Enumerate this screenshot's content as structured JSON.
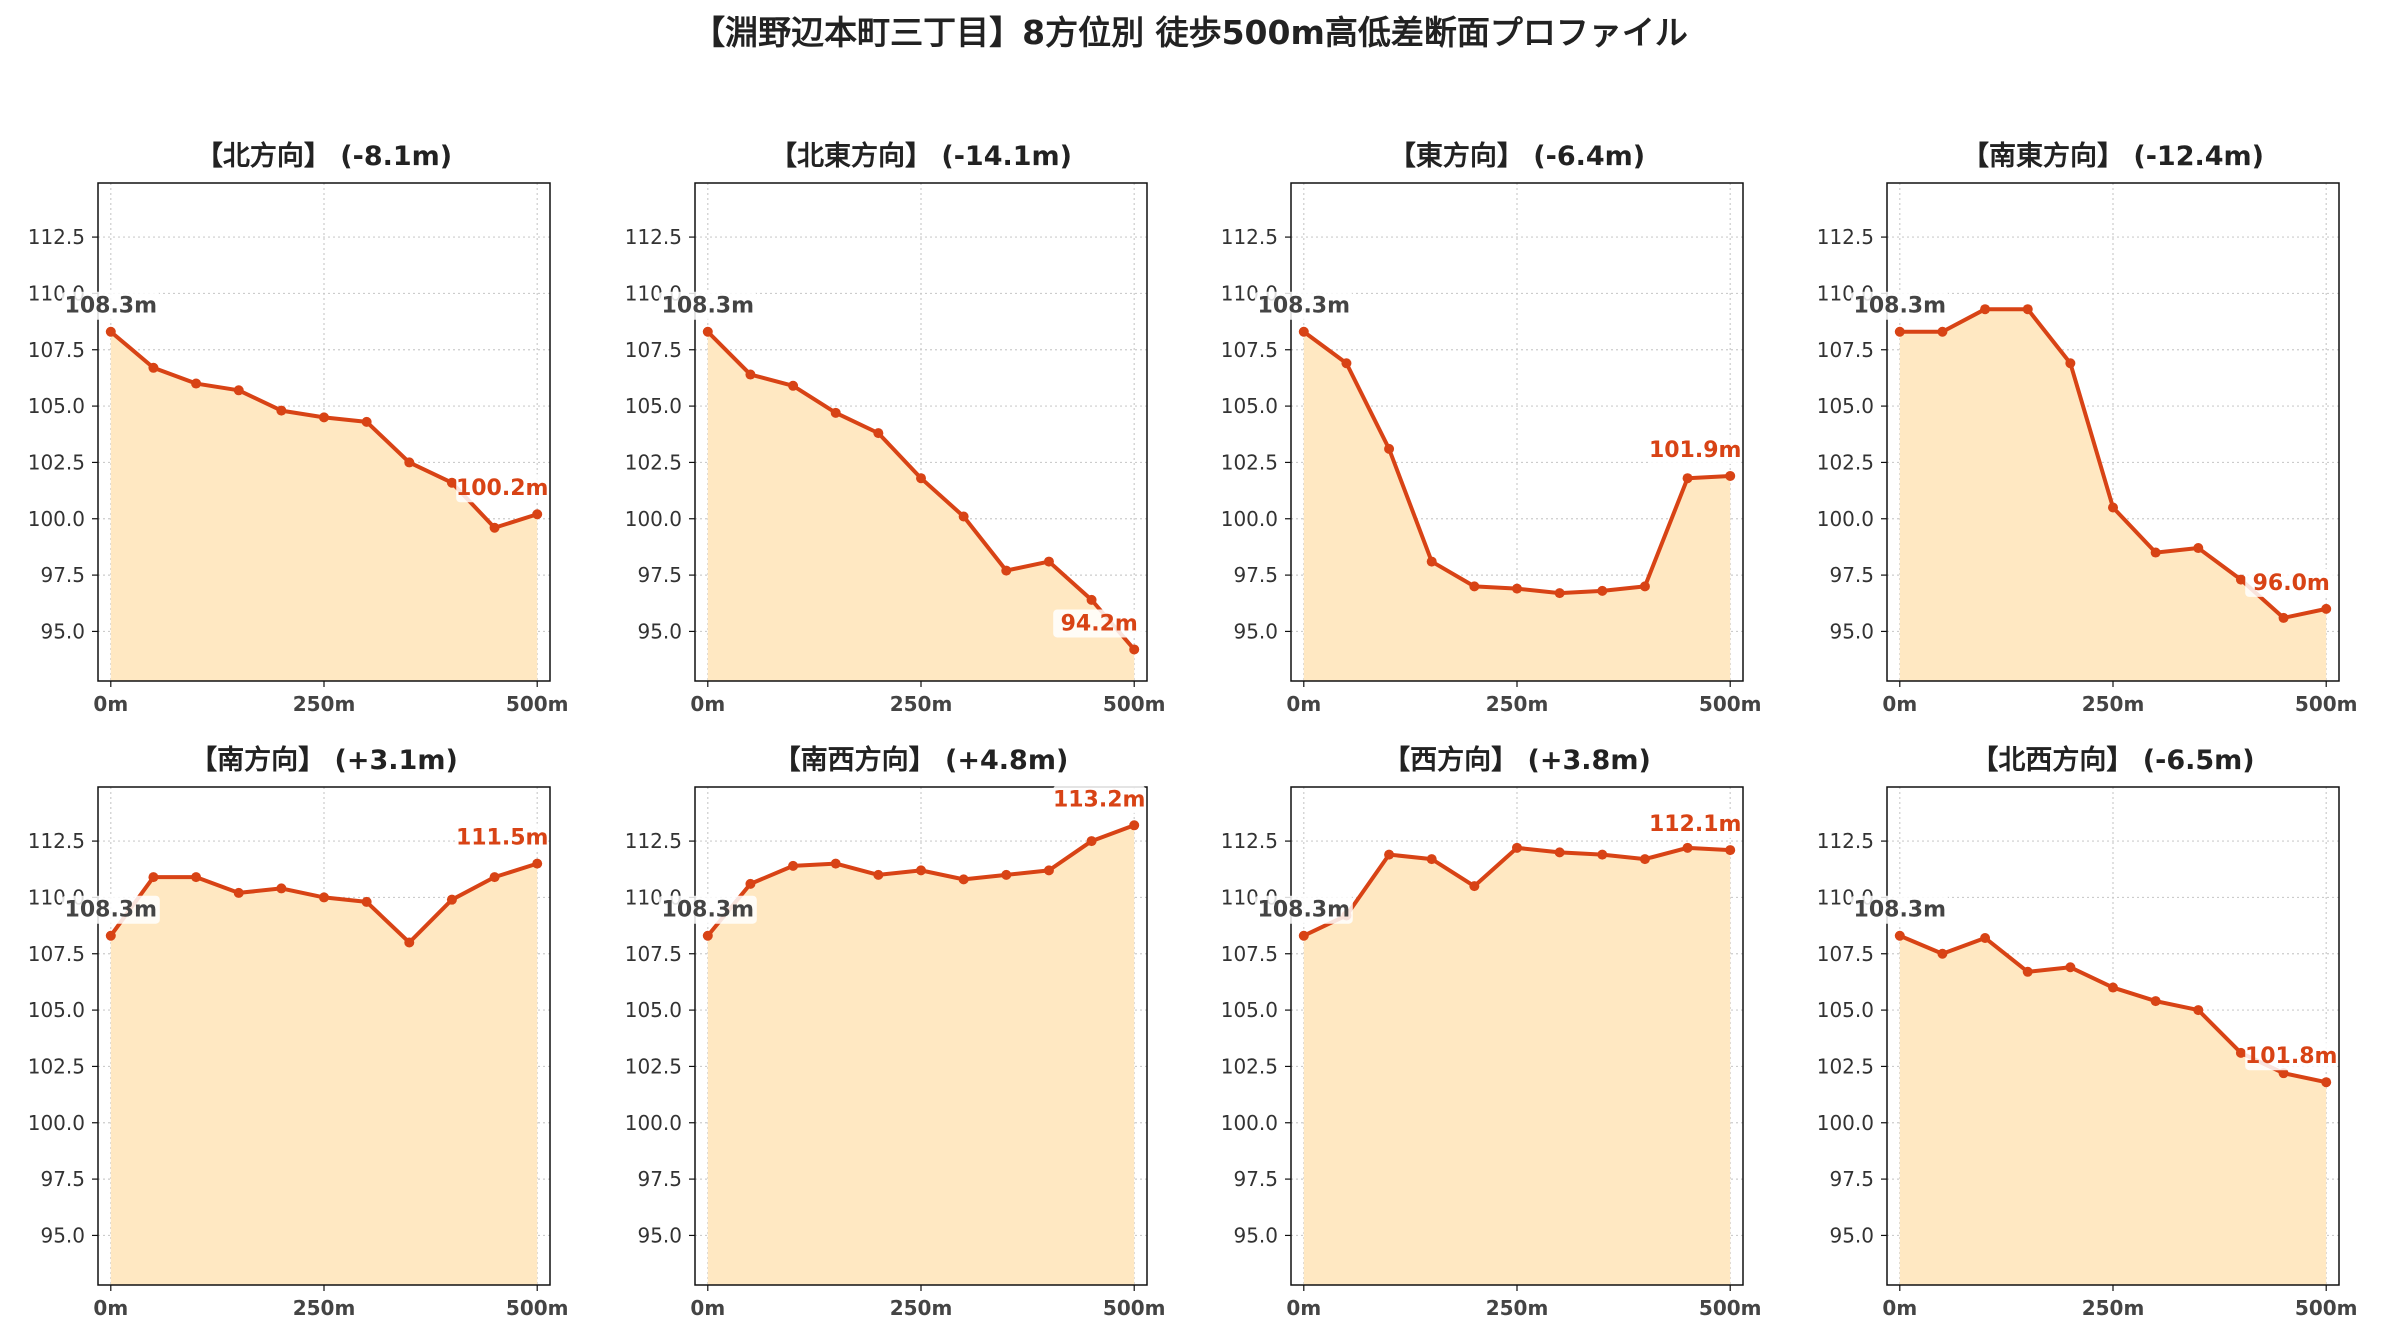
{
  "title": "【淵野辺本町三丁目】8方位別 徒歩500m高低差断面プロファイル",
  "colors": {
    "line": "#d84315",
    "fill": "#ffe8c2",
    "grid": "#cccccc",
    "start_label": "#444444",
    "end_label": "#d84315"
  },
  "chart_data": [
    {
      "type": "area",
      "title": "【北方向】 (-8.1m)",
      "x": [
        0,
        50,
        100,
        150,
        200,
        250,
        300,
        350,
        400,
        450,
        500
      ],
      "values": [
        108.3,
        106.7,
        106.0,
        105.7,
        104.8,
        104.5,
        104.3,
        102.5,
        101.6,
        99.6,
        100.2
      ],
      "start_label": "108.3m",
      "end_label": "100.2m",
      "ylim": [
        92.8,
        114.9
      ],
      "xlim": [
        -15,
        515
      ],
      "xticks": [
        "0m",
        "250m",
        "500m"
      ],
      "yticks": [
        "95.0",
        "97.5",
        "100.0",
        "102.5",
        "105.0",
        "107.5",
        "110.0",
        "112.5"
      ],
      "grid": true
    },
    {
      "type": "area",
      "title": "【北東方向】 (-14.1m)",
      "x": [
        0,
        50,
        100,
        150,
        200,
        250,
        300,
        350,
        400,
        450,
        500
      ],
      "values": [
        108.3,
        106.4,
        105.9,
        104.7,
        103.8,
        101.8,
        100.1,
        97.7,
        98.1,
        96.4,
        94.2
      ],
      "start_label": "108.3m",
      "end_label": "94.2m",
      "ylim": [
        92.8,
        114.9
      ],
      "xlim": [
        -15,
        515
      ],
      "xticks": [
        "0m",
        "250m",
        "500m"
      ],
      "yticks": [
        "95.0",
        "97.5",
        "100.0",
        "102.5",
        "105.0",
        "107.5",
        "110.0",
        "112.5"
      ],
      "grid": true
    },
    {
      "type": "area",
      "title": "【東方向】 (-6.4m)",
      "x": [
        0,
        50,
        100,
        150,
        200,
        250,
        300,
        350,
        400,
        450,
        500
      ],
      "values": [
        108.3,
        106.9,
        103.1,
        98.1,
        97.0,
        96.9,
        96.7,
        96.8,
        97.0,
        101.8,
        101.9
      ],
      "start_label": "108.3m",
      "end_label": "101.9m",
      "ylim": [
        92.8,
        114.9
      ],
      "xlim": [
        -15,
        515
      ],
      "xticks": [
        "0m",
        "250m",
        "500m"
      ],
      "yticks": [
        "95.0",
        "97.5",
        "100.0",
        "102.5",
        "105.0",
        "107.5",
        "110.0",
        "112.5"
      ],
      "grid": true
    },
    {
      "type": "area",
      "title": "【南東方向】 (-12.4m)",
      "x": [
        0,
        50,
        100,
        150,
        200,
        250,
        300,
        350,
        400,
        450,
        500
      ],
      "values": [
        108.3,
        108.3,
        109.3,
        109.3,
        106.9,
        100.5,
        98.5,
        98.7,
        97.3,
        95.6,
        96.0
      ],
      "start_label": "108.3m",
      "end_label": "96.0m",
      "ylim": [
        92.8,
        114.9
      ],
      "xlim": [
        -15,
        515
      ],
      "xticks": [
        "0m",
        "250m",
        "500m"
      ],
      "yticks": [
        "95.0",
        "97.5",
        "100.0",
        "102.5",
        "105.0",
        "107.5",
        "110.0",
        "112.5"
      ],
      "grid": true
    },
    {
      "type": "area",
      "title": "【南方向】 (+3.1m)",
      "x": [
        0,
        50,
        100,
        150,
        200,
        250,
        300,
        350,
        400,
        450,
        500
      ],
      "values": [
        108.3,
        110.9,
        110.9,
        110.2,
        110.4,
        110.0,
        109.8,
        108.0,
        109.9,
        110.9,
        111.5
      ],
      "start_label": "108.3m",
      "end_label": "111.5m",
      "ylim": [
        92.8,
        114.9
      ],
      "xlim": [
        -15,
        515
      ],
      "xticks": [
        "0m",
        "250m",
        "500m"
      ],
      "yticks": [
        "95.0",
        "97.5",
        "100.0",
        "102.5",
        "105.0",
        "107.5",
        "110.0",
        "112.5"
      ],
      "grid": true
    },
    {
      "type": "area",
      "title": "【南西方向】 (+4.8m)",
      "x": [
        0,
        50,
        100,
        150,
        200,
        250,
        300,
        350,
        400,
        450,
        500
      ],
      "values": [
        108.3,
        110.6,
        111.4,
        111.5,
        111.0,
        111.2,
        110.8,
        111.0,
        111.2,
        112.5,
        113.2
      ],
      "start_label": "108.3m",
      "end_label": "113.2m",
      "ylim": [
        92.8,
        114.9
      ],
      "xlim": [
        -15,
        515
      ],
      "xticks": [
        "0m",
        "250m",
        "500m"
      ],
      "yticks": [
        "95.0",
        "97.5",
        "100.0",
        "102.5",
        "105.0",
        "107.5",
        "110.0",
        "112.5"
      ],
      "grid": true
    },
    {
      "type": "area",
      "title": "【西方向】 (+3.8m)",
      "x": [
        0,
        50,
        100,
        150,
        200,
        250,
        300,
        350,
        400,
        450,
        500
      ],
      "values": [
        108.3,
        109.2,
        111.9,
        111.7,
        110.5,
        112.2,
        112.0,
        111.9,
        111.7,
        112.2,
        112.1
      ],
      "start_label": "108.3m",
      "end_label": "112.1m",
      "ylim": [
        92.8,
        114.9
      ],
      "xlim": [
        -15,
        515
      ],
      "xticks": [
        "0m",
        "250m",
        "500m"
      ],
      "yticks": [
        "95.0",
        "97.5",
        "100.0",
        "102.5",
        "105.0",
        "107.5",
        "110.0",
        "112.5"
      ],
      "grid": true
    },
    {
      "type": "area",
      "title": "【北西方向】 (-6.5m)",
      "x": [
        0,
        50,
        100,
        150,
        200,
        250,
        300,
        350,
        400,
        450,
        500
      ],
      "values": [
        108.3,
        107.5,
        108.2,
        106.7,
        106.9,
        106.0,
        105.4,
        105.0,
        103.1,
        102.2,
        101.8
      ],
      "start_label": "108.3m",
      "end_label": "101.8m",
      "ylim": [
        92.8,
        114.9
      ],
      "xlim": [
        -15,
        515
      ],
      "xticks": [
        "0m",
        "250m",
        "500m"
      ],
      "yticks": [
        "95.0",
        "97.5",
        "100.0",
        "102.5",
        "105.0",
        "107.5",
        "110.0",
        "112.5"
      ],
      "grid": true
    }
  ]
}
